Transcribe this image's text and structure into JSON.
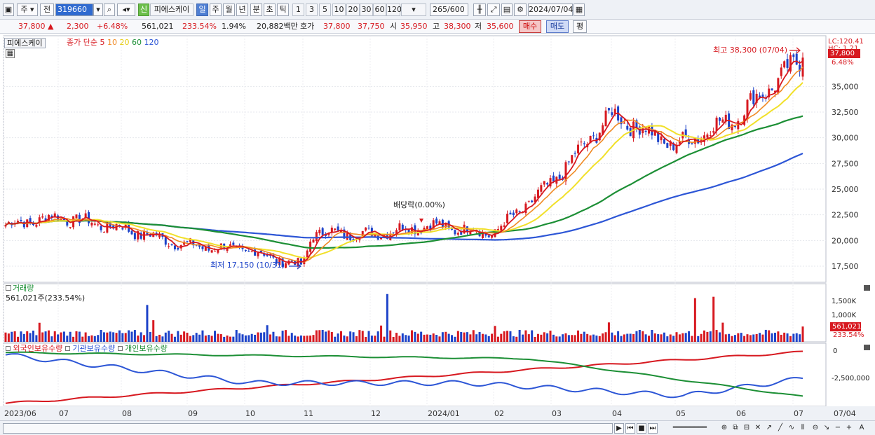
{
  "toolbar": {
    "market": "주",
    "prev_label": "전",
    "stock_code": "319660",
    "credit_label": "신",
    "stock_name": "피에스케이",
    "periods": [
      "일",
      "주",
      "월",
      "년",
      "분",
      "초",
      "틱"
    ],
    "selected_period": "일",
    "intervals": [
      "1",
      "3",
      "5",
      "10",
      "20",
      "30",
      "60",
      "120"
    ],
    "count": "265",
    "count_total": "/600",
    "date": "2024/07/04"
  },
  "quote": {
    "price": "37,800",
    "change_arrow": "▲",
    "change": "2,300",
    "change_pct": "+6.48%",
    "volume": "561,021",
    "volume_ratio": "233.54%",
    "turnover": "1.94%",
    "amount": "20,882백만",
    "bid_label": "호가",
    "ask_price": "37,800",
    "bid_price": "37,750",
    "open_label": "시",
    "open": "35,950",
    "high_label": "고",
    "high": "38,300",
    "low_label": "저",
    "low": "35,600",
    "buy_label": "매수",
    "sell_label": "매도",
    "avg_label": "평"
  },
  "price_panel": {
    "stock_tab": "피에스케이",
    "ma_label": "종가 단순",
    "ma_periods": [
      "5",
      "10",
      "20",
      "60",
      "120"
    ],
    "ma_colors": [
      "#d71920",
      "#f08a24",
      "#f1e02a",
      "#1c8f35",
      "#2d56d6"
    ],
    "lc_label": "LC:120.41",
    "hc_label": "HC: 1.21",
    "price_tag": "37,800",
    "pct_tag": "6.48%",
    "high_annotation": "최고 38,300 (07/04)",
    "low_annotation": "최저 17,150 (10/31)",
    "dividend_annotation": "배당락(0.00%)",
    "y_ticks": [
      "35,000",
      "32,500",
      "30,000",
      "27,500",
      "25,000",
      "22,500",
      "20,000",
      "17,500"
    ]
  },
  "volume_panel": {
    "title": "거래량",
    "current": "561,021주(233.54%)",
    "y_ticks": [
      "1,500K",
      "1,000K"
    ],
    "tag_value": "561,021",
    "tag_pct": "233.54%"
  },
  "holdings_panel": {
    "legends": [
      "외국인보유수량",
      "기관보유수량",
      "개인보유수량"
    ],
    "legend_colors": [
      "#d71920",
      "#2d56d6",
      "#1c8f35"
    ],
    "y_ticks": [
      "0",
      "-2,500,000"
    ]
  },
  "x_axis": [
    "2023/06",
    "07",
    "08",
    "09",
    "10",
    "11",
    "12",
    "2024/01",
    "02",
    "03",
    "04",
    "05",
    "06",
    "07",
    "07/04"
  ],
  "chart_data": {
    "type": "candlestick",
    "title": "피에스케이",
    "x_range": [
      "2023/06",
      "2024/07/04"
    ],
    "ylim": [
      16000,
      40000
    ],
    "high": {
      "value": 38300,
      "date": "07/04"
    },
    "low": {
      "value": 17150,
      "date": "10/31"
    },
    "close_path": [
      [
        "2023/06",
        21500
      ],
      [
        "2023/07",
        22300
      ],
      [
        "2023/08",
        21200
      ],
      [
        "2023/09",
        19500
      ],
      [
        "2023/10",
        19100
      ],
      [
        "2023/10/31",
        17500
      ],
      [
        "2023/11",
        20800
      ],
      [
        "2023/12",
        20600
      ],
      [
        "2024/01",
        21500
      ],
      [
        "2024/02",
        20700
      ],
      [
        "2024/03",
        25500
      ],
      [
        "2024/04",
        32300
      ],
      [
        "2024/05",
        29200
      ],
      [
        "2024/06",
        32000
      ],
      [
        "2024/07/04",
        37800
      ]
    ]
  }
}
